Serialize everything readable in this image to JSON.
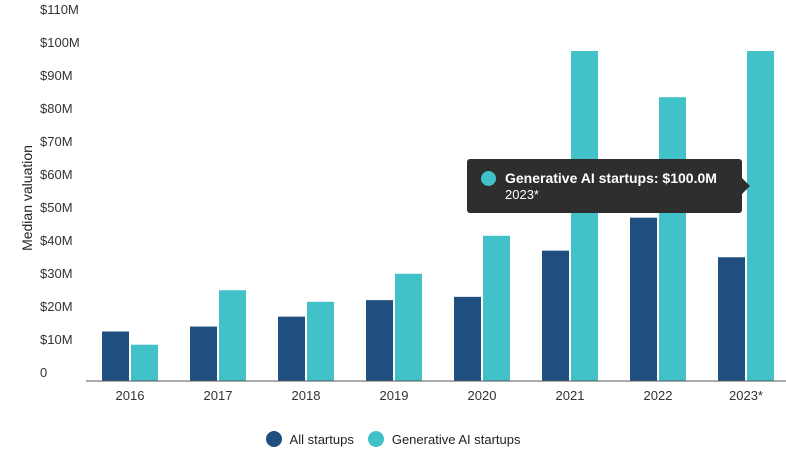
{
  "colors": {
    "all_startups": "#1f4e7f",
    "genai_startups": "#41c1c8",
    "axis": "#555555"
  },
  "chart_data": {
    "type": "bar",
    "ylabel": "Median valuation",
    "xlabel": "",
    "ylim": [
      0,
      110
    ],
    "yticks": [
      0,
      10,
      20,
      30,
      40,
      50,
      60,
      70,
      80,
      90,
      100,
      110
    ],
    "ytick_labels": [
      "0",
      "$10M",
      "$20M",
      "$30M",
      "$40M",
      "$50M",
      "$60M",
      "$70M",
      "$80M",
      "$90M",
      "$100M",
      "$110M"
    ],
    "categories": [
      "2016",
      "2017",
      "2018",
      "2019",
      "2020",
      "2021",
      "2022",
      "2023*"
    ],
    "series": [
      {
        "name": "All startups",
        "values": [
          15,
          16.5,
          19.5,
          24.5,
          25.5,
          39.5,
          49.5,
          37.5
        ]
      },
      {
        "name": "Generative AI startups",
        "values": [
          11,
          27.5,
          24,
          32.5,
          44,
          100,
          86,
          100
        ]
      }
    ],
    "grid": false,
    "legend_position": "bottom"
  },
  "tooltip": {
    "title": "Generative AI startups: $100.0M",
    "subtitle": "2023*"
  }
}
